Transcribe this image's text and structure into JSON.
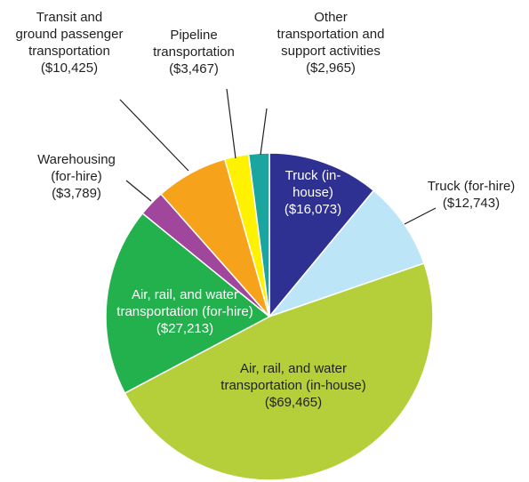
{
  "chart_data": {
    "type": "pie",
    "categories": [
      "Truck (in-house)",
      "Truck (for-hire)",
      "Air, rail, and water transportation (in-house)",
      "Air, rail, and water transportation (for-hire)",
      "Warehousing (for-hire)",
      "Transit and ground passenger transportation",
      "Pipeline transportation",
      "Other transportation and support activities"
    ],
    "values": [
      16073,
      12743,
      69465,
      27213,
      3789,
      10425,
      3467,
      2965
    ],
    "value_labels": [
      "($16,073)",
      "($12,743)",
      "($69,465)",
      "($27,213)",
      "($3,789)",
      "($10,425)",
      "($3,467)",
      "($2,965)"
    ],
    "colors": [
      "#2e3192",
      "#bde5f8",
      "#b5cf3a",
      "#22b14c",
      "#a0469c",
      "#f7a21b",
      "#fff200",
      "#1aa59e"
    ]
  }
}
